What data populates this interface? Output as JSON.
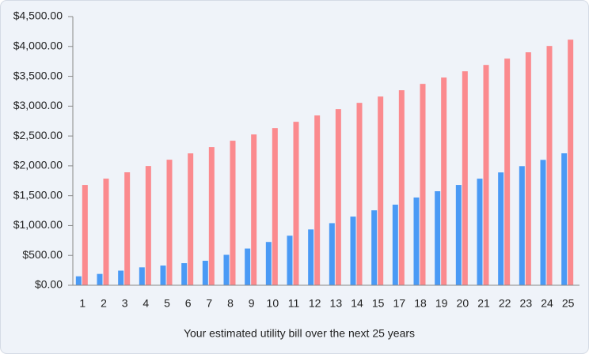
{
  "chart_data": {
    "type": "bar",
    "xlabel": "Your estimated utility bill over the next 25 years",
    "categories": [
      "1",
      "2",
      "3",
      "4",
      "5",
      "6",
      "7",
      "8",
      "9",
      "10",
      "11",
      "12",
      "13",
      "14",
      "15",
      "17",
      "18",
      "19",
      "20",
      "21",
      "22",
      "23",
      "24",
      "25"
    ],
    "series": [
      {
        "color": "#4a9af5",
        "values": [
          150,
          190,
          245,
          300,
          330,
          370,
          410,
          510,
          615,
          725,
          830,
          935,
          1040,
          1150,
          1255,
          1350,
          1470,
          1575,
          1680,
          1785,
          1890,
          1995,
          2100,
          2210
        ]
      },
      {
        "color": "#fb8a8e",
        "values": [
          1680,
          1786,
          1892,
          1997,
          2103,
          2209,
          2315,
          2421,
          2526,
          2632,
          2738,
          2844,
          2950,
          3055,
          3161,
          3267,
          3373,
          3479,
          3584,
          3690,
          3796,
          3902,
          4008,
          4114
        ]
      }
    ],
    "ylim": [
      0,
      4500
    ],
    "yticks": [
      {
        "value": 0,
        "label": "$0.00"
      },
      {
        "value": 500,
        "label": "$500.00"
      },
      {
        "value": 1000,
        "label": "$1,000.00"
      },
      {
        "value": 1500,
        "label": "$1,500.00"
      },
      {
        "value": 2000,
        "label": "$2,000.00"
      },
      {
        "value": 2500,
        "label": "$2,500.00"
      },
      {
        "value": 3000,
        "label": "$3,000.00"
      },
      {
        "value": 3500,
        "label": "$3,500.00"
      },
      {
        "value": 4000,
        "label": "$4,000.00"
      },
      {
        "value": 4500,
        "label": "$4,500.00"
      }
    ]
  }
}
